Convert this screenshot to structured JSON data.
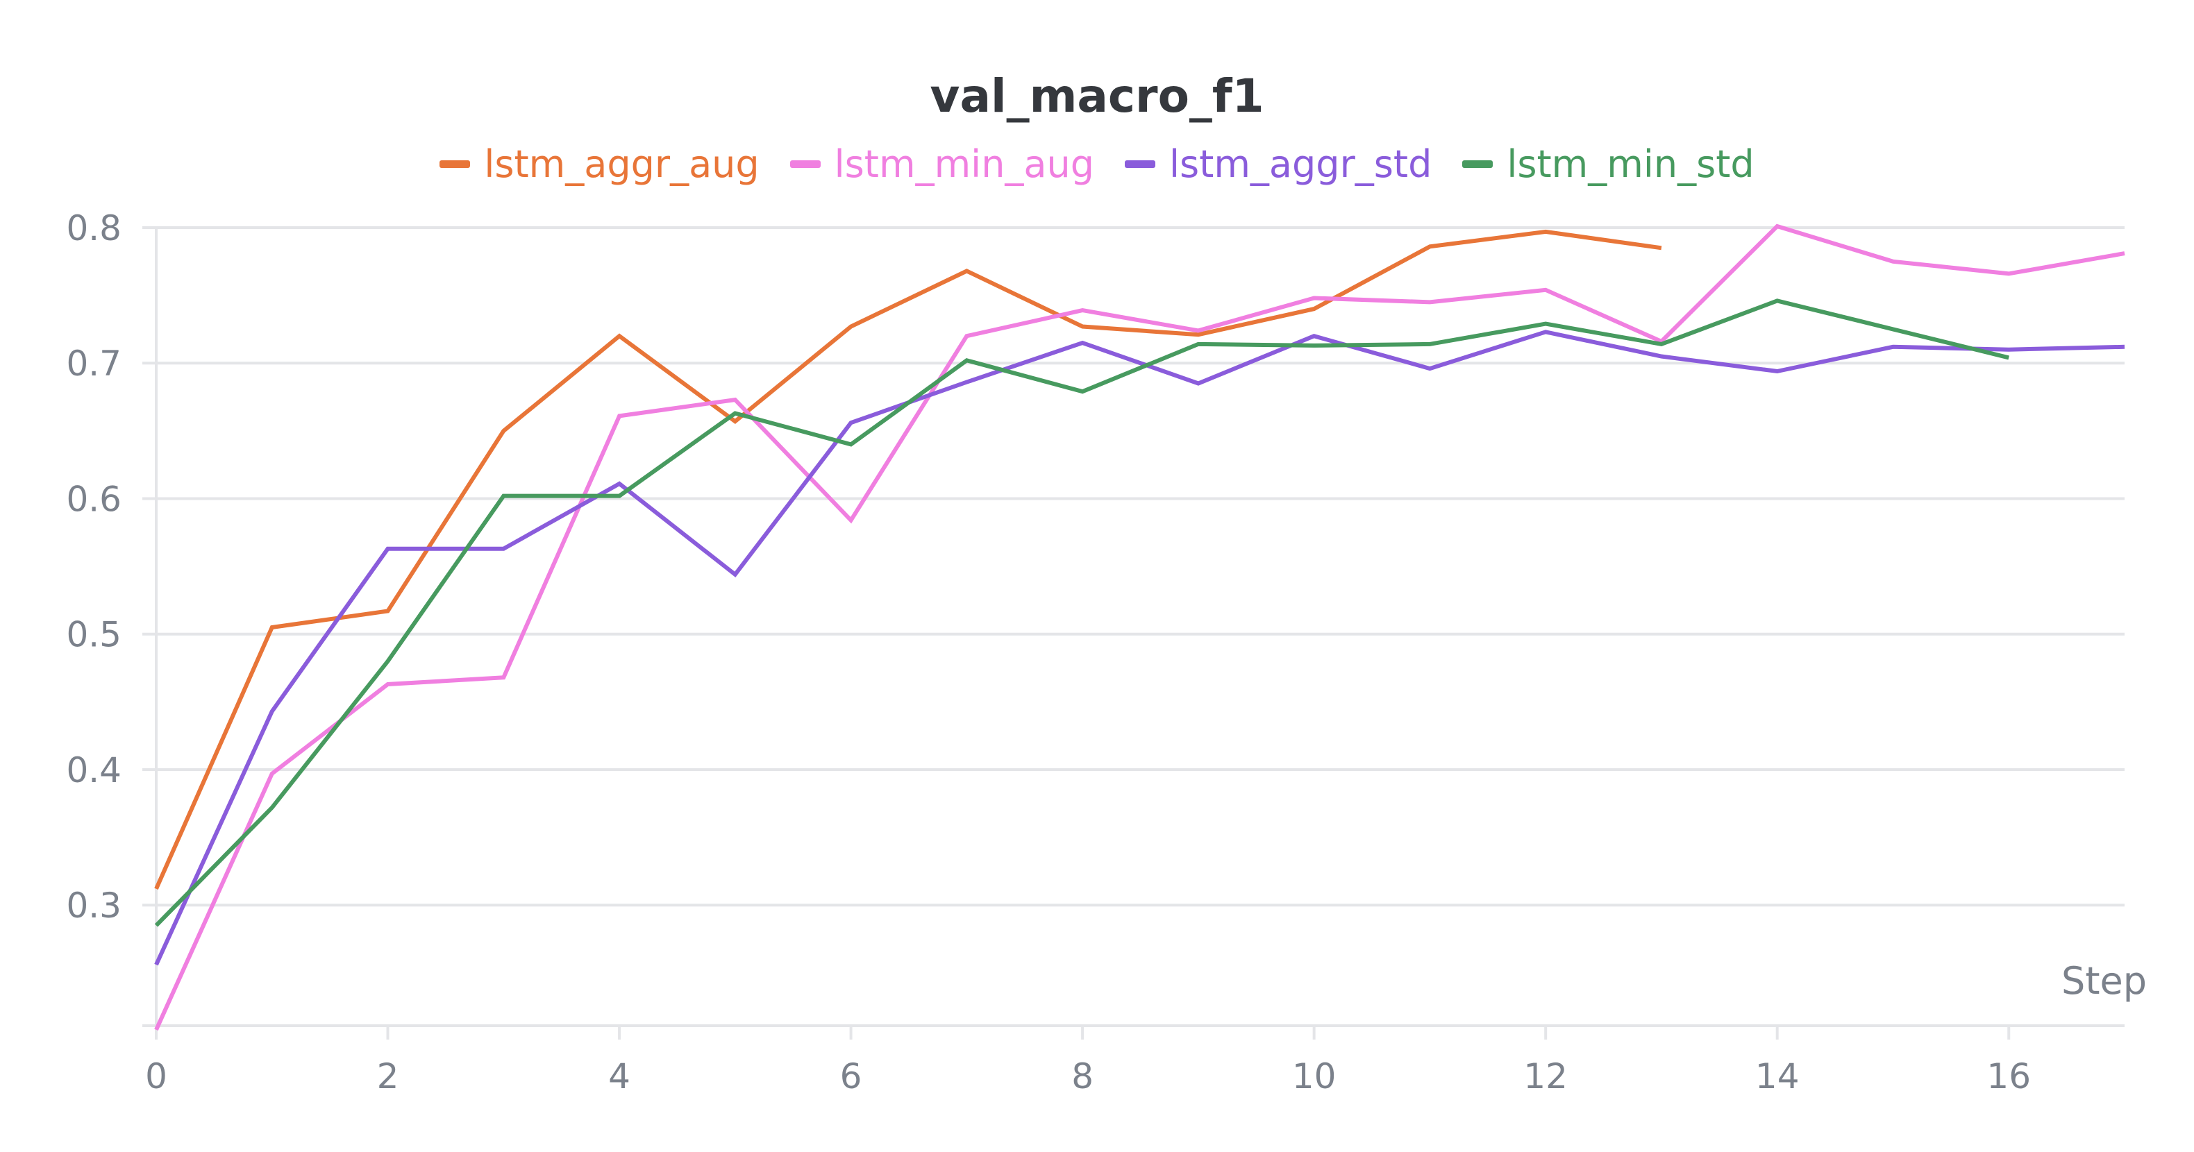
{
  "chart_data": {
    "type": "line",
    "title": "val_macro_f1",
    "xlabel": "Step",
    "ylabel": "",
    "xlim": [
      0,
      17
    ],
    "ylim": [
      0.211,
      0.8
    ],
    "xticks": [
      0,
      2,
      4,
      6,
      8,
      10,
      12,
      14,
      16
    ],
    "yticks": [
      0.3,
      0.4,
      0.5,
      0.6,
      0.7,
      0.8
    ],
    "grid": true,
    "legend_position": "top",
    "series": [
      {
        "name": "lstm_aggr_aug",
        "color": "#e87538",
        "x": [
          0,
          1,
          2,
          3,
          4,
          5,
          6,
          7,
          8,
          9,
          10,
          11,
          12,
          13
        ],
        "values": [
          0.312,
          0.505,
          0.517,
          0.65,
          0.72,
          0.657,
          0.727,
          0.768,
          0.727,
          0.721,
          0.74,
          0.786,
          0.797,
          0.785
        ]
      },
      {
        "name": "lstm_min_aug",
        "color": "#f07fe0",
        "x": [
          0,
          1,
          2,
          3,
          4,
          5,
          6,
          7,
          8,
          9,
          10,
          11,
          12,
          13,
          14,
          15,
          16,
          17
        ],
        "values": [
          0.208,
          0.397,
          0.463,
          0.468,
          0.661,
          0.673,
          0.584,
          0.72,
          0.739,
          0.724,
          0.748,
          0.745,
          0.754,
          0.716,
          0.801,
          0.775,
          0.766,
          0.781
        ]
      },
      {
        "name": "lstm_aggr_std",
        "color": "#8a5cdb",
        "x": [
          0,
          1,
          2,
          3,
          4,
          5,
          6,
          7,
          8,
          9,
          10,
          11,
          12,
          13,
          14,
          15,
          16,
          17
        ],
        "values": [
          0.256,
          0.443,
          0.563,
          0.563,
          0.611,
          0.544,
          0.656,
          0.686,
          0.715,
          0.685,
          0.72,
          0.696,
          0.723,
          0.705,
          0.694,
          0.712,
          0.71,
          0.712
        ]
      },
      {
        "name": "lstm_min_std",
        "color": "#479a5f",
        "x": [
          0,
          1,
          2,
          3,
          4,
          5,
          6,
          7,
          8,
          9,
          10,
          11,
          12,
          13,
          14,
          15,
          16
        ],
        "values": [
          0.285,
          0.372,
          0.48,
          0.602,
          0.602,
          0.663,
          0.64,
          0.702,
          0.679,
          0.714,
          0.713,
          0.714,
          0.729,
          0.714,
          0.746,
          0.725,
          0.704
        ]
      }
    ]
  },
  "labels": {
    "title": "val_macro_f1",
    "xlabel": "Step",
    "legend": [
      "lstm_aggr_aug",
      "lstm_min_aug",
      "lstm_aggr_std",
      "lstm_min_std"
    ]
  }
}
